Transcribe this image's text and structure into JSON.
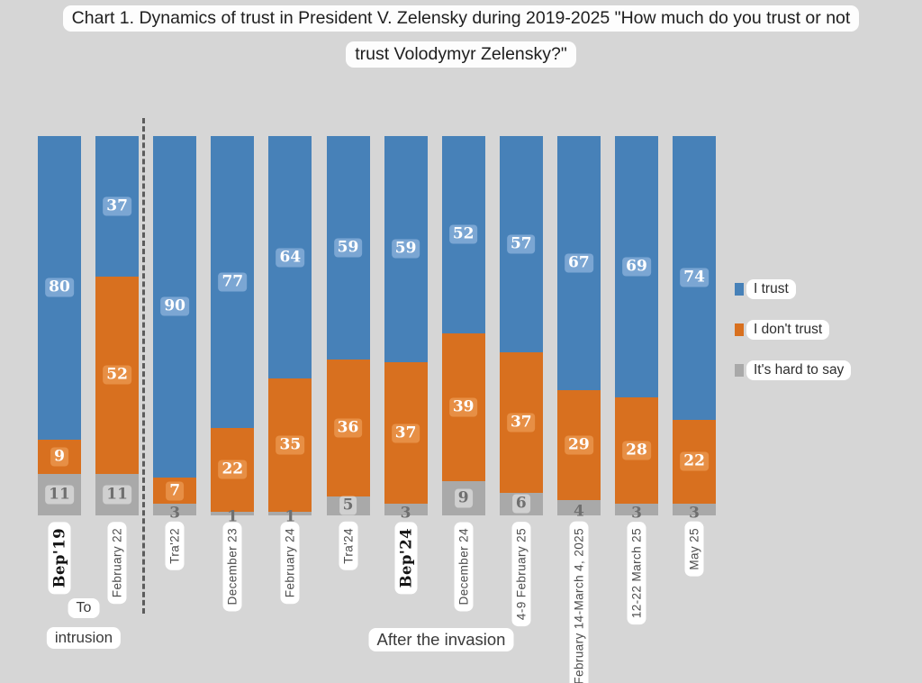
{
  "title": {
    "line1": "Chart 1. Dynamics of trust in President V. Zelensky during 2019-2025 \"How much do you trust or not",
    "line2": "trust Volodymyr Zelensky?\""
  },
  "legend": [
    {
      "label": "I trust",
      "color": "#4781b8"
    },
    {
      "label": "I don't trust",
      "color": "#d8701f"
    },
    {
      "label": "It's hard to say",
      "color": "#a9a9a9"
    }
  ],
  "annotations": {
    "before_group_line1": "To",
    "before_group_line2": "intrusion",
    "after_group": "After the invasion"
  },
  "colors": {
    "background": "#d6d6d6",
    "trust": "#4781b8",
    "distrust": "#d8701f",
    "hard_to_say": "#a9a9a9",
    "trust_badge": "#7ba6d3",
    "distrust_badge": "#e78f45",
    "divider": "#5c5c5c"
  },
  "chart_data": {
    "type": "bar",
    "stacked": true,
    "unit": "percent",
    "ylim": [
      0,
      100
    ],
    "grid": false,
    "legend_position": "right",
    "title": "Chart 1. Dynamics of trust in President V. Zelensky during 2019-2025 \"How much do you trust or not trust Volodymyr Zelensky?\"",
    "categories": [
      "Bep'19",
      "February 22",
      "Tra'22",
      "December 23",
      "February 24",
      "Tra'24",
      "Bep'24",
      "December 24",
      "4-9 February 25",
      "February 14-March 4, 2025",
      "12-22 March 25",
      "May 25"
    ],
    "bold_categories": [
      "Bep'19",
      "Bep'24"
    ],
    "divider_after_category_index": 1,
    "series": [
      {
        "name": "I trust",
        "color": "#4781b8",
        "values": [
          80,
          37,
          90,
          77,
          64,
          59,
          59,
          52,
          57,
          67,
          69,
          74
        ]
      },
      {
        "name": "I don't trust",
        "color": "#d8701f",
        "values": [
          9,
          52,
          7,
          22,
          35,
          36,
          37,
          39,
          37,
          29,
          28,
          22
        ]
      },
      {
        "name": "It's hard to say",
        "color": "#a9a9a9",
        "values": [
          11,
          11,
          3,
          1,
          1,
          5,
          3,
          9,
          6,
          4,
          3,
          3
        ]
      }
    ]
  }
}
